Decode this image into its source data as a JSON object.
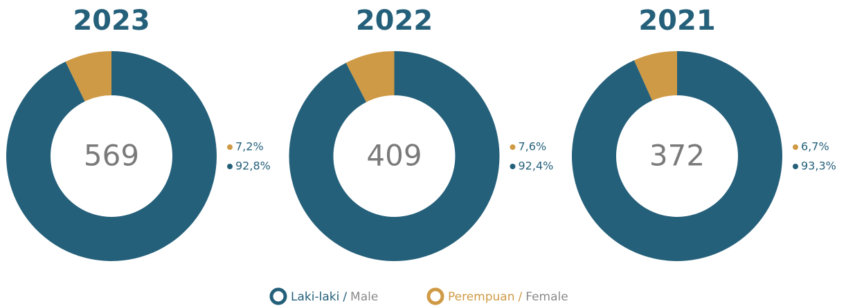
{
  "chart_data": [
    {
      "type": "pie",
      "title": "2023",
      "total": 569,
      "values": [
        7.2,
        92.8
      ],
      "value_labels": [
        "7,2%",
        "92,8%"
      ],
      "colors": [
        "#cf9a45",
        "#25607a"
      ]
    },
    {
      "type": "pie",
      "title": "2022",
      "total": 409,
      "values": [
        7.6,
        92.4
      ],
      "value_labels": [
        "7,6%",
        "92,4%"
      ],
      "colors": [
        "#cf9a45",
        "#25607a"
      ]
    },
    {
      "type": "pie",
      "title": "2021",
      "total": 372,
      "values": [
        6.7,
        93.3
      ],
      "value_labels": [
        "6,7%",
        "93,3%"
      ],
      "colors": [
        "#cf9a45",
        "#25607a"
      ]
    }
  ],
  "legend": [
    {
      "name": "Laki-laki",
      "separator": "/",
      "translation": "Male",
      "color": "#25607a"
    },
    {
      "name": "Perempuan",
      "separator": "/",
      "translation": "Female",
      "color": "#cf9a45"
    }
  ]
}
